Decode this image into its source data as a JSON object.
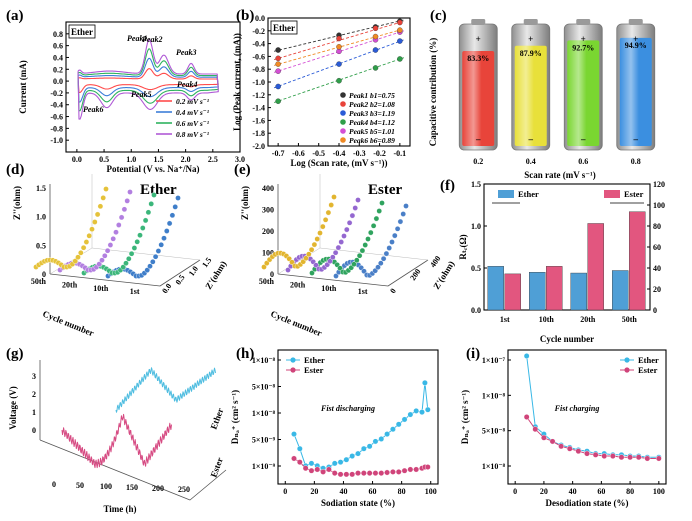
{
  "chart_data": [
    {
      "panel": "(a)",
      "type": "line",
      "tag": "Ether",
      "xlabel": "Potential (V vs. Na⁺/Na)",
      "ylabel": "Current (mA)",
      "xlim": [
        -0.2,
        3.0
      ],
      "ylim": [
        -1.2,
        1.0
      ],
      "xticks": [
        "0.0",
        "0.5",
        "1.0",
        "1.5",
        "2.0",
        "2.5",
        "3.0"
      ],
      "yticks": [
        "-1.0",
        "-0.8",
        "-0.6",
        "-0.4",
        "-0.2",
        "0.0",
        "0.2",
        "0.4",
        "0.6",
        "0.8"
      ],
      "annotations": [
        "Peak1",
        "Peak2",
        "Peak3",
        "Peak4",
        "Peak5",
        "Peak6"
      ],
      "series": [
        {
          "name": "0.2 mV s⁻¹",
          "color": "#ff4d4d",
          "scale": 0.3
        },
        {
          "name": "0.4 mV s⁻¹",
          "color": "#3d7fd9",
          "scale": 0.55
        },
        {
          "name": "0.6 mV s⁻¹",
          "color": "#2fb35f",
          "scale": 0.78
        },
        {
          "name": "0.8 mV s⁻¹",
          "color": "#b05ad6",
          "scale": 1.0
        }
      ],
      "legend": "bottom-right"
    },
    {
      "panel": "(b)",
      "type": "scatter",
      "tag": "Ether",
      "xlabel": "Log (Scan rate, (mV s⁻¹))",
      "ylabel": "Log (Peak current, (mA))",
      "xlim": [
        -0.75,
        -0.05
      ],
      "ylim": [
        -2.0,
        0.0
      ],
      "xticks": [
        "-0.7",
        "-0.6",
        "-0.5",
        "-0.4",
        "-0.3",
        "-0.2",
        "-0.1"
      ],
      "yticks": [
        "-2.0",
        "-1.8",
        "-1.6",
        "-1.4",
        "-1.2",
        "-1.0",
        "-0.8",
        "-0.6",
        "-0.4",
        "-0.2",
        "0.0"
      ],
      "x": [
        -0.7,
        -0.4,
        -0.22,
        -0.1
      ],
      "series": [
        {
          "name": "Peak1 b1=0.75",
          "color": "#333333",
          "values": [
            -0.5,
            -0.27,
            -0.14,
            -0.05
          ]
        },
        {
          "name": "Peak2 b2=1.08",
          "color": "#e8433a",
          "values": [
            -0.63,
            -0.32,
            -0.16,
            -0.07
          ]
        },
        {
          "name": "Peak3 b3=1.19",
          "color": "#2a5bd7",
          "values": [
            -1.07,
            -0.72,
            -0.5,
            -0.36
          ]
        },
        {
          "name": "Peak4 b4=1.12",
          "color": "#2f9e49",
          "values": [
            -1.3,
            -0.98,
            -0.78,
            -0.64
          ]
        },
        {
          "name": "Peak5 b5=1.01",
          "color": "#d44fd4",
          "values": [
            -0.83,
            -0.52,
            -0.34,
            -0.22
          ]
        },
        {
          "name": "Peak6 b6=0.89",
          "color": "#f08a24",
          "values": [
            -0.72,
            -0.45,
            -0.29,
            -0.19
          ]
        }
      ],
      "legend": "bottom-right"
    },
    {
      "panel": "(c)",
      "type": "bar",
      "xlabel": "Scan rate (mV s⁻¹)",
      "ylabel": "Capacitive contribution (%)",
      "categories": [
        "0.2",
        "0.4",
        "0.6",
        "0.8"
      ],
      "values": [
        83.3,
        87.9,
        92.7,
        94.9
      ],
      "labels": [
        "83.3%",
        "87.9%",
        "92.7%",
        "94.9%"
      ],
      "colors": [
        "#e8443a",
        "#e8e03a",
        "#7ad631",
        "#3b8fe0"
      ]
    },
    {
      "panel": "(d)",
      "type": "line",
      "tag": "Ether",
      "xlabel": "Z'(ohm)",
      "ylabel": "Z''(ohm)",
      "zlabel": "Cycle number",
      "zticks": [
        "1st",
        "10th",
        "20th",
        "50th"
      ],
      "xticks": [
        "0.0",
        "0.5",
        "1.0",
        "1.5"
      ],
      "yticks": [
        "0",
        "0.5",
        "1.0",
        "1.5"
      ],
      "series_colors": [
        "#3f7ec9",
        "#3bb67a",
        "#b27fe0",
        "#e5c23a"
      ]
    },
    {
      "panel": "(e)",
      "type": "line",
      "tag": "Ester",
      "xlabel": "Z'(ohm)",
      "ylabel": "Z''(ohm)",
      "zlabel": "Cycle number",
      "zticks": [
        "1st",
        "10th",
        "20th",
        "50th"
      ],
      "xticks": [
        "0",
        "200",
        "400"
      ],
      "yticks": [
        "0",
        "100",
        "200",
        "300",
        "400"
      ],
      "series_colors": [
        "#4a7fc7",
        "#2fa35e",
        "#9467d0",
        "#e2b52f"
      ]
    },
    {
      "panel": "(f)",
      "type": "bar",
      "categories": [
        "1st",
        "10th",
        "20th",
        "50th"
      ],
      "xlabel": "Cycle number",
      "ylabel": "Rₜᵣ(Ω)",
      "ylim_left": [
        0,
        1.5
      ],
      "ylim_right": [
        0,
        120
      ],
      "yticks_left": [
        "0.0",
        "0.5",
        "1.0",
        "1.5"
      ],
      "yticks_right": [
        "0",
        "20",
        "40",
        "60",
        "80",
        "100",
        "120"
      ],
      "series": [
        {
          "name": "Ether",
          "color": "#4f9fd6",
          "values": [
            0.52,
            0.45,
            0.44,
            0.47
          ]
        },
        {
          "name": "Ester",
          "color": "#e2567f",
          "values": [
            0.43,
            0.52,
            1.03,
            1.17
          ]
        }
      ]
    },
    {
      "panel": "(g)",
      "type": "line",
      "xlabel": "Time (h)",
      "ylabel": "Voltage (V)",
      "xticks": [
        "0",
        "50",
        "100",
        "150",
        "200",
        "250"
      ],
      "yticks": [
        "0",
        "1",
        "2",
        "3"
      ],
      "depth_labels": [
        "Ether",
        "Ester"
      ],
      "series_colors": [
        "#4fbde0",
        "#d64a82"
      ]
    },
    {
      "panel": "(h)",
      "type": "line",
      "xlabel": "Sodiation state (%)",
      "ylabel": "Dₙₐ⁺ (cm² s⁻¹)",
      "xticks": [
        "0",
        "20",
        "40",
        "60",
        "80",
        "100"
      ],
      "yticks": [
        "1×10⁻⁹",
        "5×10⁻⁹",
        "1×10⁻⁸",
        "5×10⁻⁸",
        "1×10⁻⁸"
      ],
      "annotation": "Fist discharging",
      "x": [
        6,
        10,
        14,
        18,
        22,
        26,
        30,
        34,
        38,
        42,
        46,
        50,
        54,
        58,
        62,
        66,
        70,
        74,
        78,
        82,
        86,
        90,
        94,
        96,
        98
      ],
      "series": [
        {
          "name": "Ether",
          "color": "#39b8e6",
          "values": [
            0.36,
            0.24,
            0.1,
            0.12,
            0.1,
            0.08,
            0.09,
            0.12,
            0.13,
            0.15,
            0.18,
            0.2,
            0.24,
            0.26,
            0.3,
            0.32,
            0.36,
            0.4,
            0.44,
            0.48,
            0.52,
            0.55,
            0.54,
            0.78,
            0.56
          ]
        },
        {
          "name": "Ester",
          "color": "#d0447a",
          "values": [
            0.16,
            0.13,
            0.08,
            0.06,
            0.07,
            0.05,
            0.07,
            0.04,
            0.03,
            0.03,
            0.03,
            0.04,
            0.04,
            0.04,
            0.04,
            0.04,
            0.045,
            0.05,
            0.05,
            0.06,
            0.07,
            0.07,
            0.08,
            0.09,
            0.09
          ]
        }
      ],
      "legend": "top-left"
    },
    {
      "panel": "(i)",
      "type": "line",
      "xlabel": "Desodiation state (%)",
      "ylabel": "Dₙₐ⁺ (cm² s⁻¹)",
      "xticks": [
        "0",
        "20",
        "40",
        "60",
        "80",
        "100"
      ],
      "yticks": [
        "1×10⁻⁸",
        "5×10⁻⁸",
        "1×10⁻⁸",
        "1×10⁻⁷"
      ],
      "annotation": "Fist charging",
      "x": [
        8,
        14,
        20,
        26,
        32,
        38,
        44,
        50,
        56,
        62,
        68,
        74,
        80,
        86,
        92,
        100
      ],
      "series": [
        {
          "name": "Ether",
          "color": "#39b8e6",
          "values": [
            1.0,
            0.42,
            0.36,
            0.3,
            0.27,
            0.25,
            0.23,
            0.22,
            0.2,
            0.2,
            0.19,
            0.19,
            0.18,
            0.18,
            0.17,
            0.17
          ]
        },
        {
          "name": "Ester",
          "color": "#d0447a",
          "values": [
            0.5,
            0.4,
            0.33,
            0.3,
            0.26,
            0.24,
            0.22,
            0.2,
            0.19,
            0.18,
            0.18,
            0.17,
            0.17,
            0.17,
            0.16,
            0.16
          ]
        }
      ],
      "legend": "top-right"
    }
  ]
}
